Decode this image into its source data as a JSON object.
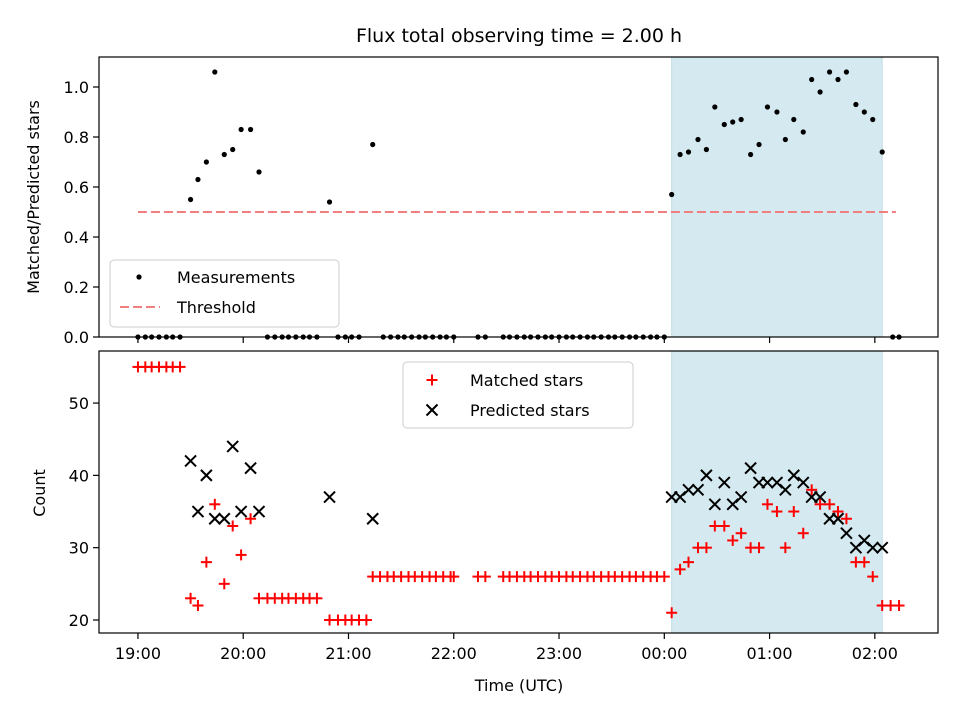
{
  "chart_data": [
    {
      "type": "scatter",
      "title": "Flux total observing time = 2.00 h",
      "xlabel": "",
      "ylabel": "Matched/Predicted stars",
      "x_unit": "hours since 19:00 UTC",
      "xlim": [
        -0.37,
        7.6
      ],
      "ylim": [
        0.0,
        1.12
      ],
      "yticks": [
        0.0,
        0.2,
        0.4,
        0.6,
        0.8,
        1.0
      ],
      "ytick_labels": [
        "0.0",
        "0.2",
        "0.4",
        "0.6",
        "0.8",
        "1.0"
      ],
      "grid": false,
      "legend_position": "lower-left",
      "observing_window": [
        5.07,
        7.07
      ],
      "observing_window_color": "#d4eaf0",
      "series": [
        {
          "name": "Measurements",
          "marker": "dot",
          "color": "#000000",
          "points": [
            [
              0.0,
              0.0
            ],
            [
              0.07,
              0.0
            ],
            [
              0.13,
              0.0
            ],
            [
              0.2,
              0.0
            ],
            [
              0.27,
              0.0
            ],
            [
              0.33,
              0.0
            ],
            [
              0.4,
              0.0
            ],
            [
              0.5,
              0.55
            ],
            [
              0.57,
              0.63
            ],
            [
              0.65,
              0.7
            ],
            [
              0.73,
              1.06
            ],
            [
              0.82,
              0.73
            ],
            [
              0.9,
              0.75
            ],
            [
              0.98,
              0.83
            ],
            [
              1.07,
              0.83
            ],
            [
              1.15,
              0.66
            ],
            [
              1.23,
              0.0
            ],
            [
              1.3,
              0.0
            ],
            [
              1.37,
              0.0
            ],
            [
              1.43,
              0.0
            ],
            [
              1.5,
              0.0
            ],
            [
              1.57,
              0.0
            ],
            [
              1.63,
              0.0
            ],
            [
              1.7,
              0.0
            ],
            [
              1.82,
              0.54
            ],
            [
              1.9,
              0.0
            ],
            [
              1.97,
              0.0
            ],
            [
              2.03,
              0.0
            ],
            [
              2.1,
              0.0
            ],
            [
              2.23,
              0.77
            ],
            [
              2.33,
              0.0
            ],
            [
              2.4,
              0.0
            ],
            [
              2.47,
              0.0
            ],
            [
              2.53,
              0.0
            ],
            [
              2.6,
              0.0
            ],
            [
              2.67,
              0.0
            ],
            [
              2.73,
              0.0
            ],
            [
              2.8,
              0.0
            ],
            [
              2.87,
              0.0
            ],
            [
              2.93,
              0.0
            ],
            [
              3.0,
              0.0
            ],
            [
              3.23,
              0.0
            ],
            [
              3.3,
              0.0
            ],
            [
              3.47,
              0.0
            ],
            [
              3.53,
              0.0
            ],
            [
              3.6,
              0.0
            ],
            [
              3.67,
              0.0
            ],
            [
              3.73,
              0.0
            ],
            [
              3.8,
              0.0
            ],
            [
              3.87,
              0.0
            ],
            [
              3.93,
              0.0
            ],
            [
              4.0,
              0.0
            ],
            [
              4.07,
              0.0
            ],
            [
              4.13,
              0.0
            ],
            [
              4.2,
              0.0
            ],
            [
              4.27,
              0.0
            ],
            [
              4.33,
              0.0
            ],
            [
              4.4,
              0.0
            ],
            [
              4.47,
              0.0
            ],
            [
              4.53,
              0.0
            ],
            [
              4.6,
              0.0
            ],
            [
              4.67,
              0.0
            ],
            [
              4.73,
              0.0
            ],
            [
              4.8,
              0.0
            ],
            [
              4.87,
              0.0
            ],
            [
              4.93,
              0.0
            ],
            [
              5.0,
              0.0
            ],
            [
              5.07,
              0.57
            ],
            [
              5.15,
              0.73
            ],
            [
              5.23,
              0.74
            ],
            [
              5.32,
              0.79
            ],
            [
              5.4,
              0.75
            ],
            [
              5.48,
              0.92
            ],
            [
              5.57,
              0.85
            ],
            [
              5.65,
              0.86
            ],
            [
              5.73,
              0.87
            ],
            [
              5.82,
              0.73
            ],
            [
              5.9,
              0.77
            ],
            [
              5.98,
              0.92
            ],
            [
              6.07,
              0.9
            ],
            [
              6.15,
              0.79
            ],
            [
              6.23,
              0.87
            ],
            [
              6.32,
              0.82
            ],
            [
              6.4,
              1.03
            ],
            [
              6.48,
              0.98
            ],
            [
              6.57,
              1.06
            ],
            [
              6.65,
              1.03
            ],
            [
              6.73,
              1.06
            ],
            [
              6.82,
              0.93
            ],
            [
              6.9,
              0.9
            ],
            [
              6.98,
              0.87
            ],
            [
              7.07,
              0.74
            ],
            [
              7.17,
              0.0
            ],
            [
              7.23,
              0.0
            ]
          ]
        },
        {
          "name": "Threshold",
          "style": "dashed",
          "color": "#f08080",
          "points": [
            [
              0.0,
              0.5
            ],
            [
              7.2,
              0.5
            ]
          ]
        }
      ]
    },
    {
      "type": "scatter",
      "title": "",
      "xlabel": "Time (UTC)",
      "ylabel": "Count",
      "x_unit": "hours since 19:00 UTC",
      "xlim": [
        -0.37,
        7.6
      ],
      "ylim": [
        18.2,
        57.2
      ],
      "xticks": [
        0,
        1,
        2,
        3,
        4,
        5,
        6,
        7
      ],
      "xtick_labels": [
        "19:00",
        "20:00",
        "21:00",
        "22:00",
        "23:00",
        "00:00",
        "01:00",
        "02:00"
      ],
      "yticks": [
        20,
        30,
        40,
        50
      ],
      "ytick_labels": [
        "20",
        "30",
        "40",
        "50"
      ],
      "grid": false,
      "legend_position": "top-center",
      "observing_window": [
        5.07,
        7.07
      ],
      "observing_window_color": "#d4eaf0",
      "series": [
        {
          "name": "Matched stars",
          "marker": "plus",
          "color": "#ff0000",
          "points": [
            [
              0.0,
              55
            ],
            [
              0.07,
              55
            ],
            [
              0.13,
              55
            ],
            [
              0.2,
              55
            ],
            [
              0.27,
              55
            ],
            [
              0.33,
              55
            ],
            [
              0.4,
              55
            ],
            [
              0.5,
              23
            ],
            [
              0.57,
              22
            ],
            [
              0.65,
              28
            ],
            [
              0.73,
              36
            ],
            [
              0.82,
              25
            ],
            [
              0.9,
              33
            ],
            [
              0.98,
              29
            ],
            [
              1.07,
              34
            ],
            [
              1.15,
              23
            ],
            [
              1.23,
              23
            ],
            [
              1.3,
              23
            ],
            [
              1.37,
              23
            ],
            [
              1.43,
              23
            ],
            [
              1.5,
              23
            ],
            [
              1.57,
              23
            ],
            [
              1.63,
              23
            ],
            [
              1.7,
              23
            ],
            [
              1.82,
              20
            ],
            [
              1.9,
              20
            ],
            [
              1.97,
              20
            ],
            [
              2.03,
              20
            ],
            [
              2.1,
              20
            ],
            [
              2.17,
              20
            ],
            [
              2.23,
              26
            ],
            [
              2.3,
              26
            ],
            [
              2.37,
              26
            ],
            [
              2.43,
              26
            ],
            [
              2.5,
              26
            ],
            [
              2.57,
              26
            ],
            [
              2.63,
              26
            ],
            [
              2.7,
              26
            ],
            [
              2.77,
              26
            ],
            [
              2.83,
              26
            ],
            [
              2.9,
              26
            ],
            [
              2.97,
              26
            ],
            [
              3.0,
              26
            ],
            [
              3.23,
              26
            ],
            [
              3.3,
              26
            ],
            [
              3.47,
              26
            ],
            [
              3.53,
              26
            ],
            [
              3.6,
              26
            ],
            [
              3.67,
              26
            ],
            [
              3.73,
              26
            ],
            [
              3.8,
              26
            ],
            [
              3.87,
              26
            ],
            [
              3.93,
              26
            ],
            [
              4.0,
              26
            ],
            [
              4.07,
              26
            ],
            [
              4.13,
              26
            ],
            [
              4.2,
              26
            ],
            [
              4.27,
              26
            ],
            [
              4.33,
              26
            ],
            [
              4.4,
              26
            ],
            [
              4.47,
              26
            ],
            [
              4.53,
              26
            ],
            [
              4.6,
              26
            ],
            [
              4.67,
              26
            ],
            [
              4.73,
              26
            ],
            [
              4.8,
              26
            ],
            [
              4.87,
              26
            ],
            [
              4.93,
              26
            ],
            [
              5.0,
              26
            ],
            [
              5.07,
              21
            ],
            [
              5.15,
              27
            ],
            [
              5.23,
              28
            ],
            [
              5.32,
              30
            ],
            [
              5.4,
              30
            ],
            [
              5.48,
              33
            ],
            [
              5.57,
              33
            ],
            [
              5.65,
              31
            ],
            [
              5.73,
              32
            ],
            [
              5.82,
              30
            ],
            [
              5.9,
              30
            ],
            [
              5.98,
              36
            ],
            [
              6.07,
              35
            ],
            [
              6.15,
              30
            ],
            [
              6.23,
              35
            ],
            [
              6.32,
              32
            ],
            [
              6.4,
              38
            ],
            [
              6.48,
              36
            ],
            [
              6.57,
              36
            ],
            [
              6.65,
              35
            ],
            [
              6.73,
              34
            ],
            [
              6.82,
              28
            ],
            [
              6.9,
              28
            ],
            [
              6.98,
              26
            ],
            [
              7.07,
              22
            ],
            [
              7.15,
              22
            ],
            [
              7.23,
              22
            ]
          ]
        },
        {
          "name": "Predicted stars",
          "marker": "x",
          "color": "#000000",
          "points": [
            [
              0.5,
              42
            ],
            [
              0.57,
              35
            ],
            [
              0.65,
              40
            ],
            [
              0.73,
              34
            ],
            [
              0.82,
              34
            ],
            [
              0.9,
              44
            ],
            [
              0.98,
              35
            ],
            [
              1.07,
              41
            ],
            [
              1.15,
              35
            ],
            [
              1.82,
              37
            ],
            [
              2.23,
              34
            ],
            [
              5.07,
              37
            ],
            [
              5.15,
              37
            ],
            [
              5.23,
              38
            ],
            [
              5.32,
              38
            ],
            [
              5.4,
              40
            ],
            [
              5.48,
              36
            ],
            [
              5.57,
              39
            ],
            [
              5.65,
              36
            ],
            [
              5.73,
              37
            ],
            [
              5.82,
              41
            ],
            [
              5.9,
              39
            ],
            [
              5.98,
              39
            ],
            [
              6.07,
              39
            ],
            [
              6.15,
              38
            ],
            [
              6.23,
              40
            ],
            [
              6.32,
              39
            ],
            [
              6.4,
              37
            ],
            [
              6.48,
              37
            ],
            [
              6.57,
              34
            ],
            [
              6.65,
              34
            ],
            [
              6.73,
              32
            ],
            [
              6.82,
              30
            ],
            [
              6.9,
              31
            ],
            [
              6.98,
              30
            ],
            [
              7.07,
              30
            ]
          ]
        }
      ]
    }
  ]
}
